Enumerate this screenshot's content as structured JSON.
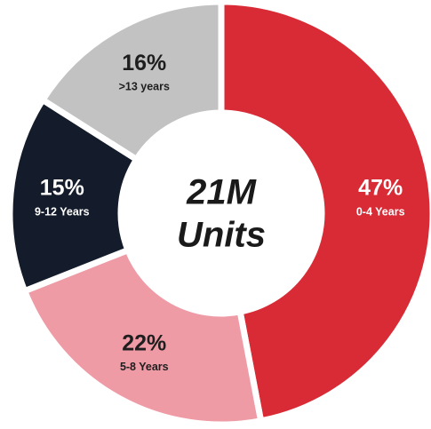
{
  "chart_data": {
    "type": "donut",
    "categories": [
      "0-4 Years",
      "5-8 Years",
      "9-12 Years",
      ">13 years"
    ],
    "values": [
      47,
      22,
      15,
      16
    ],
    "value_labels": [
      "47%",
      "22%",
      "15%",
      "16%"
    ],
    "colors": [
      "#d92b36",
      "#ef9ba6",
      "#141c2b",
      "#c2c2c2"
    ],
    "label_colors": [
      "#ffffff",
      "#1e1e1e",
      "#ffffff",
      "#1e1e1e"
    ],
    "center_lines": [
      "21M",
      "Units"
    ]
  }
}
